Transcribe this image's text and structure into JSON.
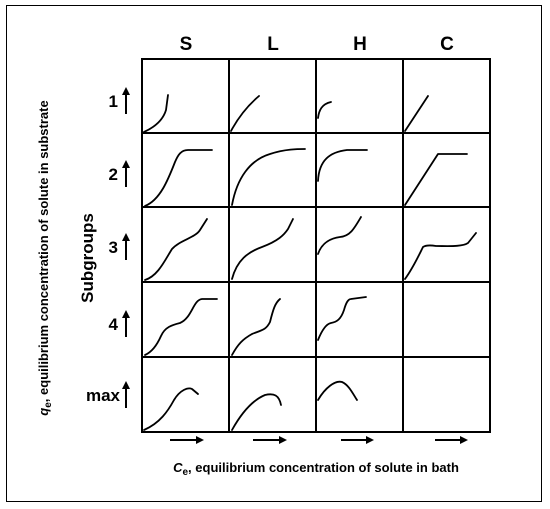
{
  "columns": [
    {
      "key": "S",
      "label": "S"
    },
    {
      "key": "L",
      "label": "L"
    },
    {
      "key": "H",
      "label": "H"
    },
    {
      "key": "C",
      "label": "C"
    }
  ],
  "rows": [
    {
      "key": "1",
      "label": "1"
    },
    {
      "key": "2",
      "label": "2"
    },
    {
      "key": "3",
      "label": "3"
    },
    {
      "key": "4",
      "label": "4"
    },
    {
      "key": "max",
      "label": "max"
    }
  ],
  "subgroups_label": "Subgroups",
  "y_axis": {
    "symbol": "q",
    "subscript": "e",
    "text": ", equilibrium concentration of solute in substrate"
  },
  "x_axis": {
    "symbol": "C",
    "subscript": "e",
    "text": ", equilibrium concentration of solute in bath"
  },
  "empty_cells": [
    "C-4",
    "C-max"
  ]
}
